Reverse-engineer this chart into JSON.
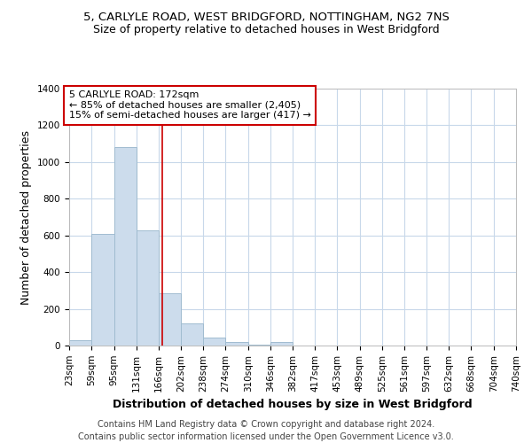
{
  "title_line1": "5, CARLYLE ROAD, WEST BRIDGFORD, NOTTINGHAM, NG2 7NS",
  "title_line2": "Size of property relative to detached houses in West Bridgford",
  "xlabel": "Distribution of detached houses by size in West Bridgford",
  "ylabel": "Number of detached properties",
  "footer": "Contains HM Land Registry data © Crown copyright and database right 2024.\nContains public sector information licensed under the Open Government Licence v3.0.",
  "bins": [
    23,
    59,
    95,
    131,
    166,
    202,
    238,
    274,
    310,
    346,
    382,
    417,
    453,
    489,
    525,
    561,
    597,
    632,
    668,
    704,
    740
  ],
  "counts": [
    30,
    610,
    1080,
    630,
    285,
    120,
    45,
    20,
    5,
    20,
    0,
    0,
    0,
    0,
    0,
    0,
    0,
    0,
    0,
    0
  ],
  "bar_color": "#ccdcec",
  "bar_edgecolor": "#a0bcd0",
  "redline_x": 172,
  "annotation_line1": "5 CARLYLE ROAD: 172sqm",
  "annotation_line2": "← 85% of detached houses are smaller (2,405)",
  "annotation_line3": "15% of semi-detached houses are larger (417) →",
  "annotation_box_color": "#cc0000",
  "ylim": [
    0,
    1400
  ],
  "yticks": [
    0,
    200,
    400,
    600,
    800,
    1000,
    1200,
    1400
  ],
  "background_color": "#ffffff",
  "grid_color": "#c8d8ea",
  "title_fontsize": 9.5,
  "subtitle_fontsize": 9,
  "axis_label_fontsize": 9,
  "tick_fontsize": 7.5,
  "footer_fontsize": 7,
  "annot_fontsize": 8
}
